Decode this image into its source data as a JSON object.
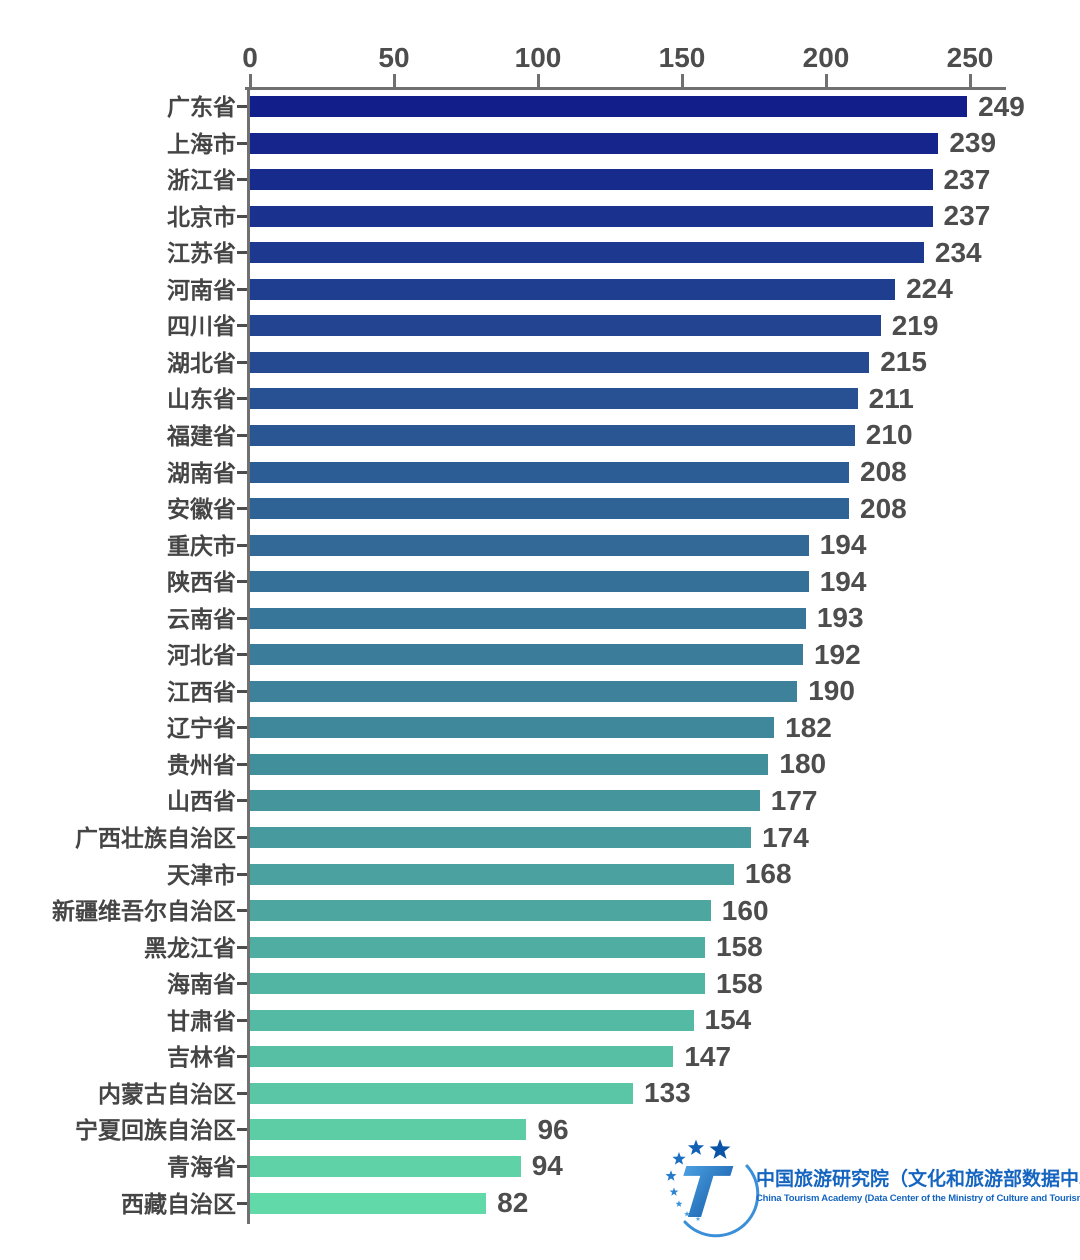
{
  "chart_data": {
    "type": "bar",
    "orientation": "horizontal",
    "title": "",
    "xlabel": "",
    "ylabel": "",
    "categories": [
      "广东省",
      "上海市",
      "浙江省",
      "北京市",
      "江苏省",
      "河南省",
      "四川省",
      "湖北省",
      "山东省",
      "福建省",
      "湖南省",
      "安徽省",
      "重庆市",
      "陕西省",
      "云南省",
      "河北省",
      "江西省",
      "辽宁省",
      "贵州省",
      "山西省",
      "广西壮族自治区",
      "天津市",
      "新疆维吾尔自治区",
      "黑龙江省",
      "海南省",
      "甘肃省",
      "吉林省",
      "内蒙古自治区",
      "宁夏回族自治区",
      "青海省",
      "西藏自治区"
    ],
    "values": [
      249,
      239,
      237,
      237,
      234,
      224,
      219,
      215,
      211,
      210,
      208,
      208,
      194,
      194,
      193,
      192,
      190,
      182,
      180,
      177,
      174,
      168,
      160,
      158,
      158,
      154,
      147,
      133,
      96,
      94,
      82
    ],
    "xlim": [
      0,
      250
    ],
    "xticks": [
      0,
      50,
      100,
      150,
      200,
      250
    ],
    "grid": false,
    "legend": null,
    "value_labels_shown": true,
    "bar_color_start": "#121F8B",
    "bar_color_end": "#62D9A8",
    "axis_color": "#707070",
    "label_color": "#4D4D4D"
  },
  "logo": {
    "title_cn": "中国旅游研究院（文化和旅游部数据中心）",
    "title_en": "China Tourism Academy (Data Center of the Ministry of Culture and Tourism)",
    "text_color": "#1565C0",
    "t_gradient_start": "#55ABE9",
    "t_gradient_end": "#0B4FA0",
    "star_colors": [
      "#0A54A8",
      "#1261B4",
      "#1B6EC0",
      "#2479CA",
      "#2E85D4",
      "#3A91DC",
      "#479DE4",
      "#55A9EC"
    ],
    "swoosh_color": "#3A8FD8"
  }
}
